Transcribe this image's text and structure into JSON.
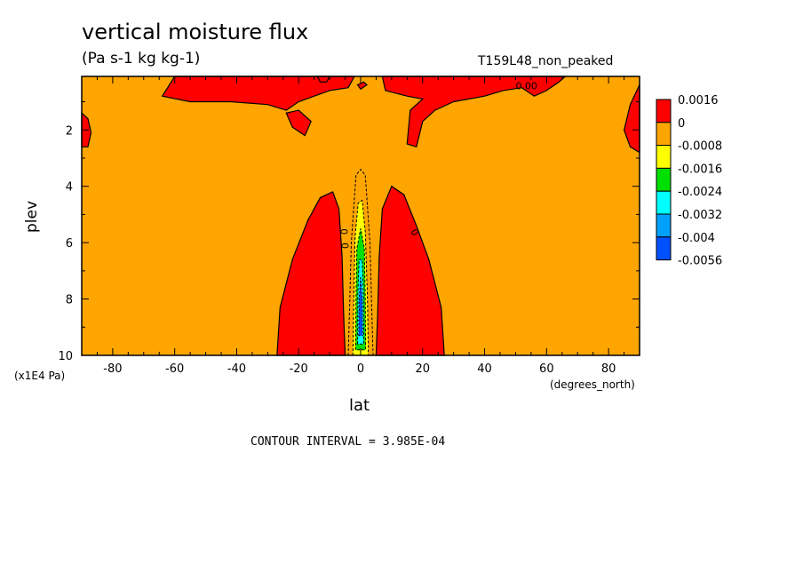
{
  "chart_data": {
    "type": "heatmap",
    "title": "vertical moisture flux",
    "units": "(Pa s-1 kg kg-1)",
    "experiment": "T159L48_non_peaked",
    "xlabel": "lat",
    "ylabel": "plev",
    "x_unit": "(degrees_north)",
    "y_unit": "(x1E4 Pa)",
    "xlim": [
      -90,
      90
    ],
    "ylim": [
      10,
      0.1
    ],
    "x_ticks": [
      "-80",
      "-60",
      "-40",
      "-20",
      "0",
      "20",
      "40",
      "60",
      "80"
    ],
    "x_tick_values": [
      -80,
      -60,
      -40,
      -20,
      0,
      20,
      40,
      60,
      80
    ],
    "y_ticks": [
      "2",
      "4",
      "6",
      "8",
      "10"
    ],
    "y_tick_values": [
      2,
      4,
      6,
      8,
      10
    ],
    "contour_interval": "CONTOUR INTERVAL = 3.985E-04",
    "contour_labels": [
      "0",
      "0",
      "0",
      "0.00"
    ],
    "legend": {
      "placement": "right",
      "labels": [
        "0.0016",
        "0",
        "-0.0008",
        "-0.0016",
        "-0.0024",
        "-0.0032",
        "-0.004",
        "-0.0056"
      ],
      "colors": [
        "#ff0000",
        "#ffa500",
        "#ffff00",
        "#00e000",
        "#00ffff",
        "#00a0ff",
        "#0050ff"
      ]
    },
    "regions": [
      {
        "name": "positive-flux",
        "color": "#ff0000"
      },
      {
        "name": "near-zero-flux",
        "color": "#ffa500"
      },
      {
        "name": "negative-flux-core",
        "color": "#0050ff"
      }
    ]
  }
}
